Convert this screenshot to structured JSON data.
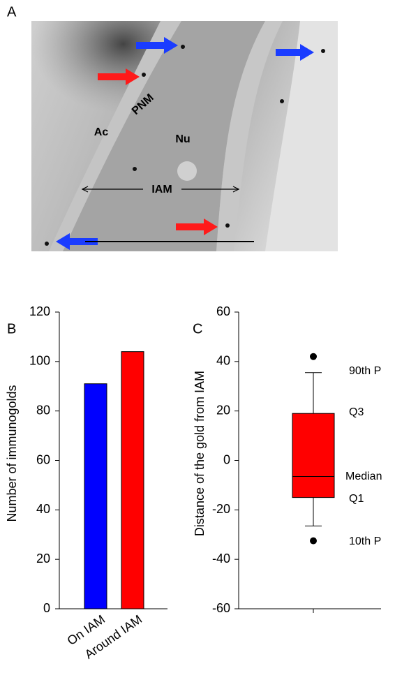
{
  "image_panel": {
    "panel_label": "A",
    "labels": [
      "PNM",
      "Ac",
      "Nu",
      "IAM"
    ]
  },
  "chart_data": [
    {
      "type": "bar",
      "panel_label": "B",
      "ylabel": "Number of immunogolds",
      "categories": [
        "On IAM",
        "Around IAM"
      ],
      "values": [
        91,
        104
      ],
      "colors": [
        "#0000ff",
        "#ff0000"
      ],
      "ylim": [
        0,
        120
      ],
      "yticks": [
        0,
        20,
        40,
        60,
        80,
        100,
        120
      ]
    },
    {
      "type": "box",
      "panel_label": "C",
      "ylabel": "Distance of the gold from IAM",
      "whislo": -26.5,
      "q1": -15,
      "median": -6.5,
      "q3": 19,
      "whishi": 35.5,
      "outliers": [
        42,
        -32.5
      ],
      "color": "#ff0000",
      "ylim": [
        -60,
        60
      ],
      "yticks": [
        -60,
        -40,
        -20,
        0,
        20,
        40,
        60
      ],
      "annotations": [
        "90th P",
        "Q3",
        "Median",
        "Q1",
        "10th P"
      ]
    }
  ]
}
